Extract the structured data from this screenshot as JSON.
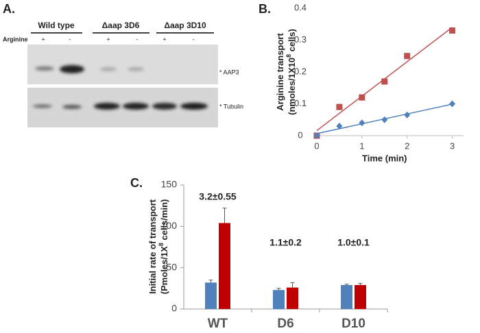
{
  "blot": {
    "label": "A.",
    "groups": [
      "Wild type",
      "Δaap 3D6",
      "Δaap 3D10"
    ],
    "row_label": "Arginine",
    "lanes": [
      "+",
      "-",
      "+",
      "-",
      "+",
      "-"
    ],
    "bands": [
      "* AAP3",
      "* Tubulin"
    ]
  },
  "chart_data": [
    {
      "type": "line",
      "label": "B.",
      "xlabel": "Time (min)",
      "ylabel": {
        "line1": "Arginine transport",
        "line2": "(nmoles/1X10",
        "sup": "8",
        "end": " cells)"
      },
      "x": [
        0,
        0.5,
        1,
        1.5,
        2,
        3
      ],
      "series": [
        {
          "color": "#c0504d",
          "marker": "square",
          "values": [
            0,
            0.09,
            0.12,
            0.17,
            0.25,
            0.33
          ]
        },
        {
          "color": "#4f81bd",
          "marker": "diamond",
          "values": [
            0,
            0.03,
            0.04,
            0.05,
            0.065,
            0.1
          ]
        }
      ],
      "trendline": true,
      "xlim": [
        0,
        3.25
      ],
      "xticks": [
        0,
        1,
        2,
        3
      ],
      "ylim": [
        0,
        0.4
      ],
      "yticks": [
        0,
        0.1,
        0.2,
        0.3,
        0.4
      ]
    },
    {
      "type": "bar",
      "label": "C.",
      "ylabel": {
        "line1": "Initial rate of transport",
        "line2": "(Pmoles/1X",
        "sup": "8",
        "end": " cells/min)"
      },
      "categories": [
        "WT",
        "D6",
        "D10"
      ],
      "series": [
        {
          "color": "#4f81bd",
          "values": [
            32,
            23,
            29
          ],
          "errors": [
            3,
            2,
            1
          ]
        },
        {
          "color": "#c00000",
          "values": [
            104,
            26,
            29
          ],
          "errors": [
            18,
            6,
            2
          ]
        }
      ],
      "annotations": [
        "3.2±0.55",
        "1.1±0.2",
        "1.0±0.1"
      ],
      "ylim": [
        0,
        150
      ],
      "yticks": [
        0,
        50,
        100,
        150
      ]
    }
  ]
}
